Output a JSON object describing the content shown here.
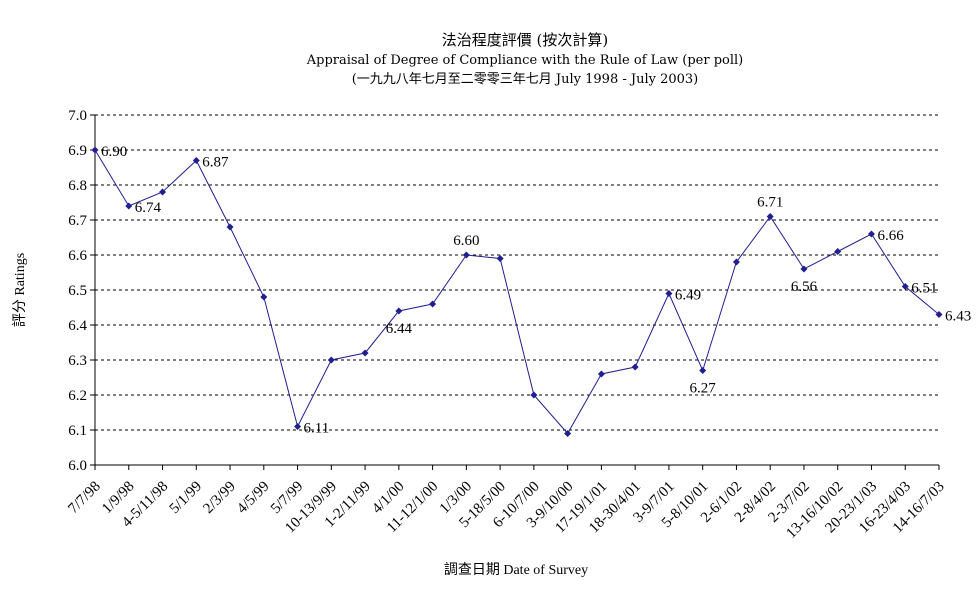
{
  "chart_data": {
    "type": "line",
    "title": "法治程度評價 (按次計算)",
    "subtitle": "Appraisal of Degree of Compliance with the Rule of Law (per poll)",
    "subtitle2": "(一九九八年七月至二零零三年七月 July 1998 - July 2003)",
    "xlabel": "調查日期 Date of Survey",
    "ylabel": "評分 Ratings",
    "ylim": [
      6.0,
      7.0
    ],
    "yticks": [
      "6.0",
      "6.1",
      "6.2",
      "6.3",
      "6.4",
      "6.5",
      "6.6",
      "6.7",
      "6.8",
      "6.9",
      "7.0"
    ],
    "grid": "horizontal dashed",
    "line_color": "#1f1f8f",
    "categories": [
      "7/7/98",
      "1/9/98",
      "4-5/11/98",
      "5/1/99",
      "2/3/99",
      "4/5/99",
      "5/7/99",
      "10-13/9/99",
      "1-2/11/99",
      "4/1/00",
      "11-12/1/00",
      "1/3/00",
      "5-18/5/00",
      "6-10/7/00",
      "3-9/10/00",
      "17-19/1/01",
      "18-30/4/01",
      "3-9/7/01",
      "5-8/10/01",
      "2-6/1/02",
      "2-8/4/02",
      "2-3/7/02",
      "13-16/10/02",
      "20-23/1/03",
      "16-23/4/03",
      "14-16/7/03"
    ],
    "tick_labels": [
      "7/7/98",
      "1/9/98",
      "4-5/11/98",
      "5/1/99",
      "2/3/99",
      "4/5/99",
      "5/7/99",
      "10-13/9/99",
      "1-2/11/99",
      "4/1/00",
      "11-12/1/00",
      "1/3/00",
      "5-18/5/00",
      "6-10/7/00",
      "3-9/10/00",
      "17-19/1/01",
      "18-30/4/01",
      "3-9/7/01",
      "5-8/10/01",
      "2-6/1/02",
      "2-8/4/02",
      "2-3/7/02",
      "13-16/10/02",
      "20-23/1/03",
      "16-23/4/03",
      "14-16/7/03"
    ],
    "series": [
      {
        "values": [
          6.9,
          6.74,
          6.78,
          6.87,
          6.68,
          6.48,
          6.11,
          6.3,
          6.32,
          6.44,
          6.46,
          6.6,
          6.59,
          6.2,
          6.09,
          6.26,
          6.28,
          6.49,
          6.27,
          6.58,
          6.71,
          6.56,
          6.61,
          6.66,
          6.51,
          6.43
        ]
      }
    ],
    "data_labels": [
      {
        "index": 0,
        "text": "6.90",
        "pos": "right"
      },
      {
        "index": 1,
        "text": "6.74",
        "pos": "right"
      },
      {
        "index": 3,
        "text": "6.87",
        "pos": "right"
      },
      {
        "index": 6,
        "text": "6.11",
        "pos": "right"
      },
      {
        "index": 9,
        "text": "6.44",
        "pos": "below"
      },
      {
        "index": 11,
        "text": "6.60",
        "pos": "above"
      },
      {
        "index": 17,
        "text": "6.49",
        "pos": "right"
      },
      {
        "index": 18,
        "text": "6.27",
        "pos": "below"
      },
      {
        "index": 20,
        "text": "6.71",
        "pos": "above"
      },
      {
        "index": 21,
        "text": "6.56",
        "pos": "below"
      },
      {
        "index": 23,
        "text": "6.66",
        "pos": "right"
      },
      {
        "index": 24,
        "text": "6.51",
        "pos": "right"
      },
      {
        "index": 25,
        "text": "6.43",
        "pos": "right"
      }
    ]
  }
}
